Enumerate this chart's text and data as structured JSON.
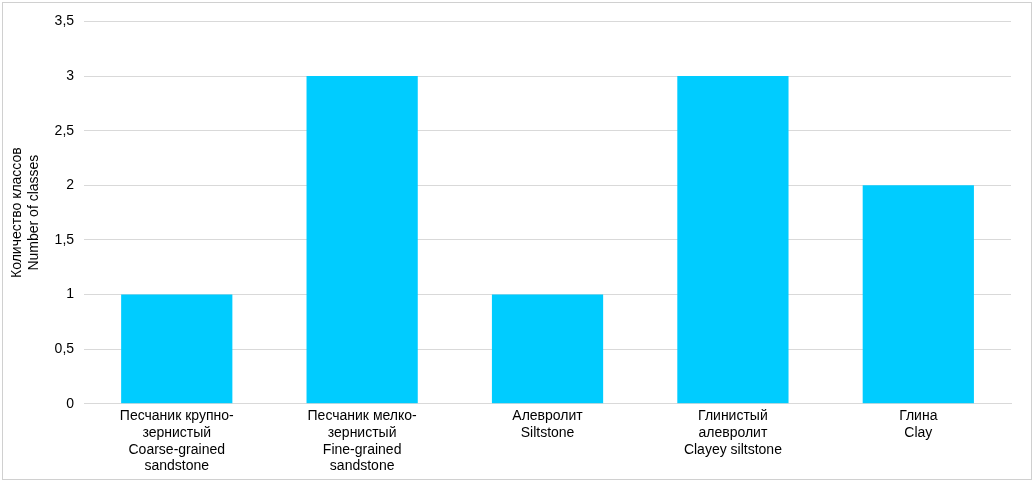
{
  "chart_data": {
    "type": "bar",
    "ylabel": "Количество классов\nNumber of classes",
    "categories": [
      "Песчаник крупно-\nзернистый\nCoarse-grained\nsandstone",
      "Песчаник мелко-\nзернистый\nFine-grained\nsandstone",
      "Алевролит\nSiltstone",
      "Глинистый\nалевролит\nClayey siltstone",
      "Глина\nClay"
    ],
    "values": [
      1,
      3,
      1,
      3,
      2
    ],
    "color": "#00ccff",
    "ylim": [
      0,
      3.5
    ],
    "yticks": [
      0,
      {
        "value": 0.5,
        "label": "0,5"
      },
      1,
      {
        "value": 1.5,
        "label": "1,5"
      },
      2,
      {
        "value": 2.5,
        "label": "2,5"
      },
      3,
      {
        "value": 3.5,
        "label": "3,5"
      }
    ],
    "grid": "y",
    "legend": false
  }
}
